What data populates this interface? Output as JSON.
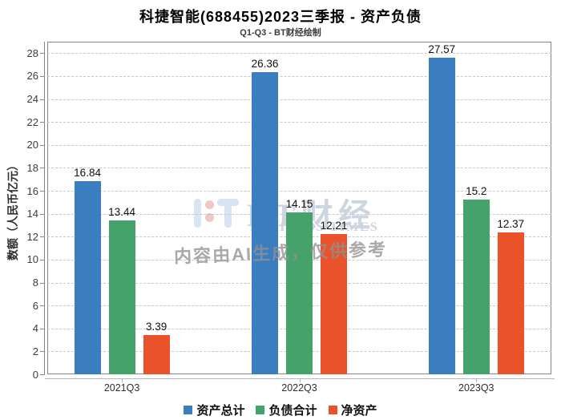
{
  "title": "科捷智能(688455)2023三季报 - 资产负债",
  "subtitle": "Q1-Q3 - BT财经绘制",
  "watermark": {
    "brand": "BT财经",
    "brand_sub": "BUSINESS TIMES",
    "ai_notice": "内容由AI生成，仅供参考"
  },
  "chart_data": {
    "type": "bar",
    "categories": [
      "2021Q3",
      "2022Q3",
      "2023Q3"
    ],
    "series": [
      {
        "name": "资产总计",
        "color": "#3a7ebf",
        "values": [
          16.84,
          26.36,
          27.57
        ]
      },
      {
        "name": "负债合计",
        "color": "#45a26b",
        "values": [
          13.44,
          14.15,
          15.2
        ]
      },
      {
        "name": "净资产",
        "color": "#e9522b",
        "values": [
          3.39,
          12.21,
          12.37
        ]
      }
    ],
    "ylabel": "数额（人民币亿元）",
    "ylim": [
      0,
      29
    ],
    "ytick_step": 2,
    "ytick_max": 28,
    "grid": true,
    "legend_position": "bottom"
  }
}
